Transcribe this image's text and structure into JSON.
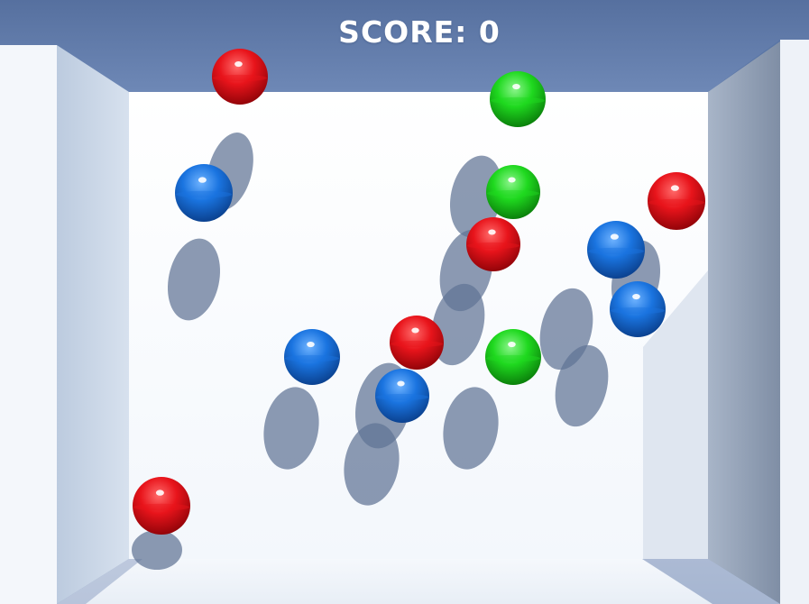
{
  "hud": {
    "score_label": "SCORE: 0"
  },
  "ball_colors": {
    "red": "#e8141b",
    "green": "#1fd91f",
    "blue": "#1a74e0"
  },
  "balls": [
    {
      "color": "red"
    },
    {
      "color": "green"
    },
    {
      "color": "blue"
    },
    {
      "color": "green"
    },
    {
      "color": "red"
    },
    {
      "color": "red"
    },
    {
      "color": "blue"
    },
    {
      "color": "blue"
    },
    {
      "color": "blue"
    },
    {
      "color": "red"
    },
    {
      "color": "green"
    },
    {
      "color": "blue"
    },
    {
      "color": "red"
    }
  ]
}
